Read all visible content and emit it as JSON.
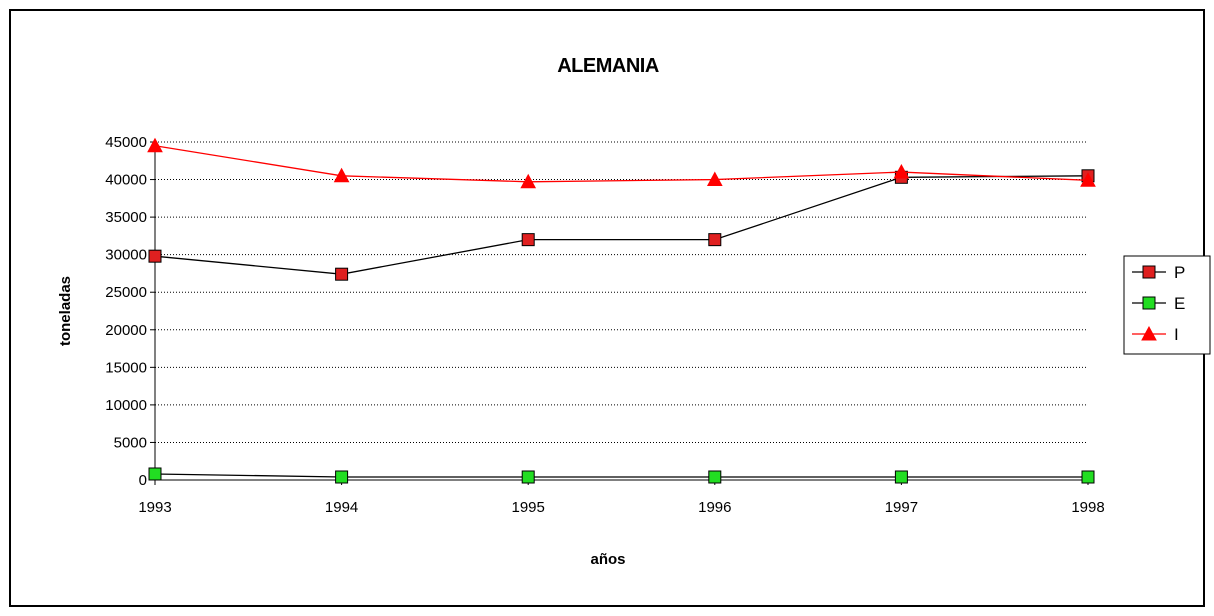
{
  "chart_data": {
    "type": "line",
    "title": "ALEMANIA",
    "xlabel": "años",
    "ylabel": "toneladas",
    "categories": [
      "1993",
      "1994",
      "1995",
      "1996",
      "1997",
      "1998"
    ],
    "ylim": [
      0,
      45000
    ],
    "yticks": [
      0,
      5000,
      10000,
      15000,
      20000,
      25000,
      30000,
      35000,
      40000,
      45000
    ],
    "grid": "horizontal dotted",
    "legend_position": "right",
    "series": [
      {
        "name": "P",
        "line_color": "#000000",
        "marker": "square",
        "marker_color": "#e02020",
        "values": [
          29800,
          27400,
          32000,
          32000,
          40300,
          40500
        ]
      },
      {
        "name": "E",
        "line_color": "#000000",
        "marker": "square",
        "marker_color": "#22dd22",
        "values": [
          800,
          400,
          400,
          400,
          400,
          400
        ]
      },
      {
        "name": "I",
        "line_color": "#ff0000",
        "marker": "triangle",
        "marker_color": "#ff0000",
        "values": [
          44500,
          40500,
          39700,
          40000,
          41000,
          39900
        ]
      }
    ]
  }
}
